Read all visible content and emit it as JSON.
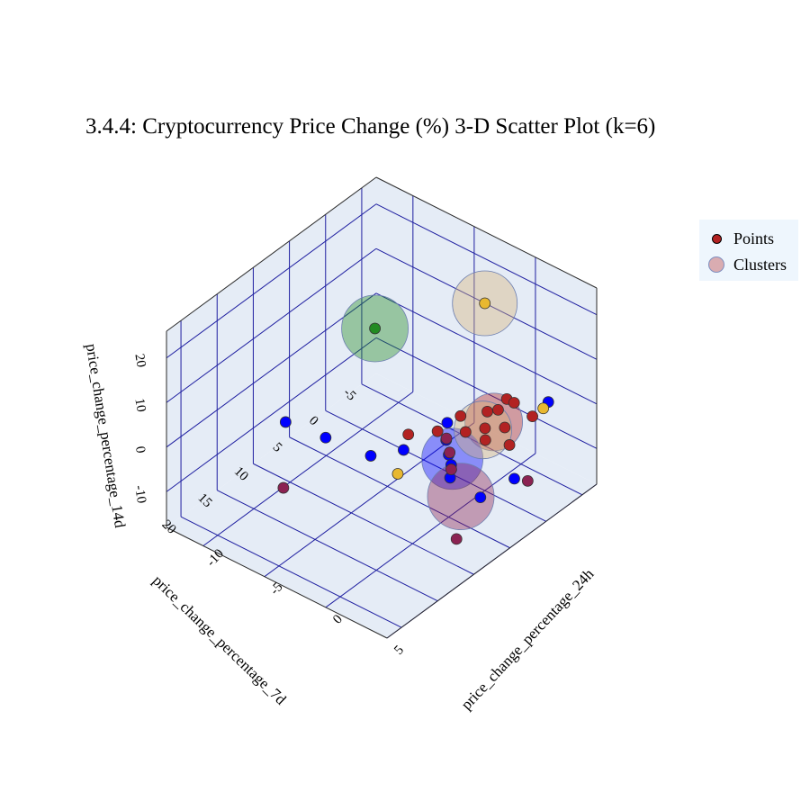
{
  "chart_data": {
    "type": "scatter",
    "title": "3.4.4: Cryptocurrency Price Change (%) 3-D Scatter Plot (k=6)",
    "x_axis": {
      "label": "price_change_percentage_24h",
      "range": [
        -13,
        5
      ],
      "ticks": [
        -10,
        -5,
        0,
        5
      ]
    },
    "y_axis": {
      "label": "price_change_percentage_7d",
      "range": [
        -7,
        22
      ],
      "ticks": [
        -5,
        0,
        5,
        10,
        15,
        20
      ]
    },
    "z_axis": {
      "label": "price_change_percentage_14d",
      "range": [
        -18,
        26
      ],
      "ticks": [
        -10,
        0,
        10,
        20
      ]
    },
    "legend": {
      "position": "top-right",
      "entries": [
        "Points",
        "Clusters"
      ]
    },
    "cluster_colors": [
      "#b22222",
      "#0000ff",
      "#e8b830",
      "#8b2252",
      "#228b22"
    ],
    "series": [
      {
        "name": "Points",
        "points": [
          {
            "x": 1.5,
            "y": -0.5,
            "z": 4,
            "c": 0
          },
          {
            "x": 1.2,
            "y": 0.2,
            "z": 2,
            "c": 0
          },
          {
            "x": 1.8,
            "y": -1.0,
            "z": 3,
            "c": 0
          },
          {
            "x": 0.5,
            "y": 0.5,
            "z": 1,
            "c": 0
          },
          {
            "x": 2.1,
            "y": 0.8,
            "z": 0,
            "c": 0
          },
          {
            "x": 0.9,
            "y": 1.5,
            "z": -1,
            "c": 0
          },
          {
            "x": 1.4,
            "y": 2.3,
            "z": -2,
            "c": 0
          },
          {
            "x": 2.6,
            "y": 1.0,
            "z": -3,
            "c": 0
          },
          {
            "x": 0.2,
            "y": 3.0,
            "z": -1,
            "c": 0
          },
          {
            "x": -0.8,
            "y": 2.0,
            "z": 0,
            "c": 0
          },
          {
            "x": 3.0,
            "y": -1.5,
            "z": 1,
            "c": 0
          },
          {
            "x": -1.5,
            "y": 4.0,
            "z": -2,
            "c": 0
          },
          {
            "x": -3.0,
            "y": 5.5,
            "z": -3,
            "c": 0
          },
          {
            "x": 0.0,
            "y": 5.0,
            "z": -4,
            "c": 1
          },
          {
            "x": -0.5,
            "y": 4.5,
            "z": -2,
            "c": 1
          },
          {
            "x": 0.5,
            "y": 5.5,
            "z": -5,
            "c": 1
          },
          {
            "x": -1.0,
            "y": 3.5,
            "z": 0,
            "c": 1
          },
          {
            "x": 1.0,
            "y": 6.5,
            "z": -6,
            "c": 1
          },
          {
            "x": -2.5,
            "y": 7.0,
            "z": -4,
            "c": 1
          },
          {
            "x": 3.0,
            "y": 1.0,
            "z": -10,
            "c": 1
          },
          {
            "x": -4.0,
            "y": 9.0,
            "z": -5,
            "c": 1
          },
          {
            "x": 4.0,
            "y": -2.0,
            "z": 5,
            "c": 1
          },
          {
            "x": -6.5,
            "y": 11.0,
            "z": -2,
            "c": 1
          },
          {
            "x": 2.0,
            "y": 4.0,
            "z": -12,
            "c": 1
          },
          {
            "x": -8.0,
            "y": 14.0,
            "z": 3,
            "c": 1
          },
          {
            "x": 0.0,
            "y": 0.0,
            "z": 24,
            "c": 2
          },
          {
            "x": 3.0,
            "y": -3.0,
            "z": 1,
            "c": 2
          },
          {
            "x": -1.5,
            "y": 9.5,
            "z": -5,
            "c": 2
          },
          {
            "x": 0.2,
            "y": 5.2,
            "z": -3,
            "c": 3
          },
          {
            "x": -0.3,
            "y": 4.8,
            "z": -1,
            "c": 3
          },
          {
            "x": 0.8,
            "y": 6.0,
            "z": -5,
            "c": 3
          },
          {
            "x": 3.5,
            "y": 0.0,
            "z": -11,
            "c": 3
          },
          {
            "x": -7.0,
            "y": 16.0,
            "z": -8,
            "c": 3
          },
          {
            "x": 3.0,
            "y": 9.0,
            "z": -14,
            "c": 3
          },
          {
            "x": -7.2,
            "y": 3.0,
            "z": 12,
            "c": 4
          }
        ]
      },
      {
        "name": "Clusters",
        "centers": [
          {
            "x": 1.2,
            "y": 0.8,
            "z": 0,
            "c": 0
          },
          {
            "x": 0.3,
            "y": 5.0,
            "z": -4.5,
            "c": 1
          },
          {
            "x": 0.0,
            "y": 0.0,
            "z": 24,
            "c": 2
          },
          {
            "x": 1.2,
            "y": 2.3,
            "z": 0,
            "c": 2
          },
          {
            "x": 0.4,
            "y": 4.0,
            "z": -14,
            "c": 3
          },
          {
            "x": -7.2,
            "y": 3.0,
            "z": 12,
            "c": 4
          }
        ]
      }
    ]
  }
}
